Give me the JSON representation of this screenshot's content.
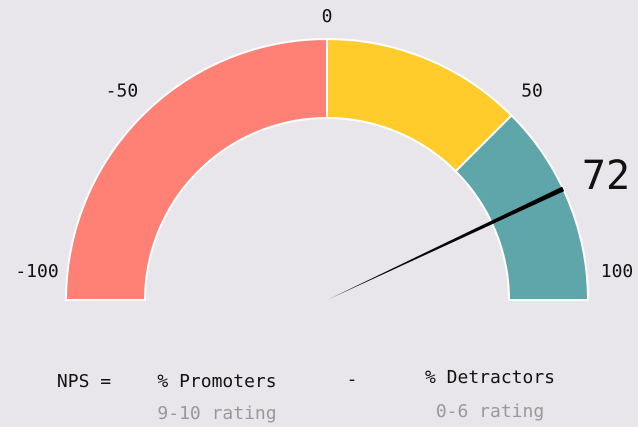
{
  "chart_data": {
    "type": "gauge",
    "value": 72,
    "xlim": [
      -100,
      100
    ],
    "xticks": [
      -100,
      -50,
      0,
      50,
      100
    ],
    "bands": [
      {
        "from": -100,
        "to": 0,
        "color": "#ff8075"
      },
      {
        "from": 0,
        "to": 50,
        "color": "#ffcc2b"
      },
      {
        "from": 50,
        "to": 100,
        "color": "#5fa6aa"
      }
    ],
    "needle_color": "#000000"
  },
  "formula": {
    "lhs": "NPS =",
    "promoters": "% Promoters",
    "minus": "-",
    "detractors": "% Detractors",
    "promoters_note": "9-10 rating",
    "detractors_note": "0-6 rating"
  }
}
